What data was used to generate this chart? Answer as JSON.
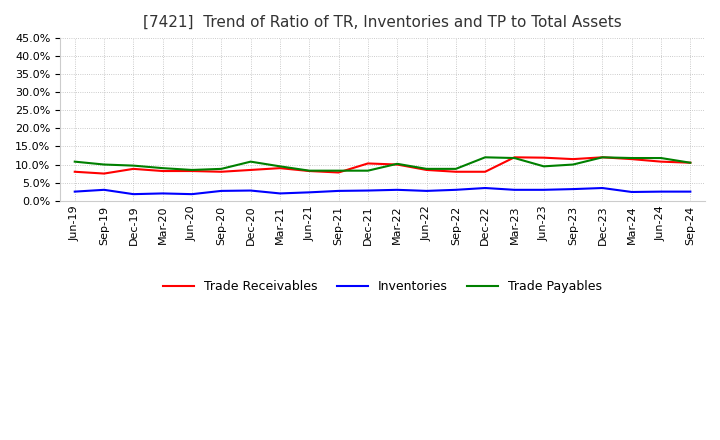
{
  "title": "[7421]  Trend of Ratio of TR, Inventories and TP to Total Assets",
  "ylim": [
    0.0,
    0.45
  ],
  "yticks": [
    0.0,
    0.05,
    0.1,
    0.15,
    0.2,
    0.25,
    0.3,
    0.35,
    0.4,
    0.45
  ],
  "labels": [
    "Jun-19",
    "Sep-19",
    "Dec-19",
    "Mar-20",
    "Jun-20",
    "Sep-20",
    "Dec-20",
    "Mar-21",
    "Jun-21",
    "Sep-21",
    "Dec-21",
    "Mar-22",
    "Jun-22",
    "Sep-22",
    "Dec-22",
    "Mar-23",
    "Jun-23",
    "Sep-23",
    "Dec-23",
    "Mar-24",
    "Jun-24",
    "Sep-24"
  ],
  "trade_receivables": [
    0.08,
    0.075,
    0.088,
    0.082,
    0.082,
    0.08,
    0.085,
    0.09,
    0.082,
    0.078,
    0.103,
    0.1,
    0.085,
    0.08,
    0.08,
    0.12,
    0.119,
    0.115,
    0.12,
    0.115,
    0.108,
    0.105
  ],
  "inventories": [
    0.025,
    0.03,
    0.018,
    0.02,
    0.018,
    0.027,
    0.028,
    0.02,
    0.023,
    0.027,
    0.028,
    0.03,
    0.027,
    0.03,
    0.035,
    0.03,
    0.03,
    0.032,
    0.035,
    0.024,
    0.025,
    0.025
  ],
  "trade_payables": [
    0.108,
    0.1,
    0.097,
    0.09,
    0.085,
    0.088,
    0.108,
    0.095,
    0.083,
    0.083,
    0.083,
    0.102,
    0.088,
    0.088,
    0.12,
    0.118,
    0.095,
    0.1,
    0.12,
    0.118,
    0.118,
    0.105
  ],
  "line_colors": {
    "trade_receivables": "#FF0000",
    "inventories": "#0000FF",
    "trade_payables": "#008000"
  },
  "legend_labels": [
    "Trade Receivables",
    "Inventories",
    "Trade Payables"
  ],
  "background_color": "#FFFFFF",
  "grid_color": "#BBBBBB",
  "title_fontsize": 11,
  "tick_fontsize": 8,
  "legend_fontsize": 9
}
